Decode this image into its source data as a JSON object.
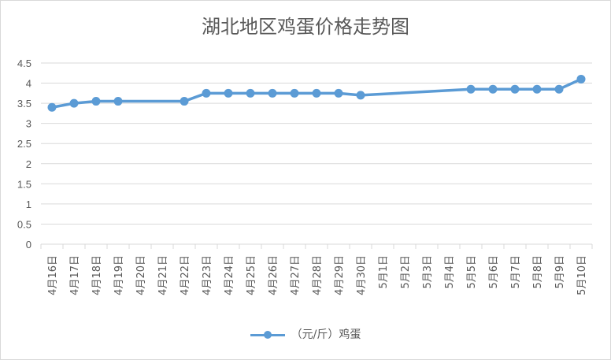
{
  "chart_data": {
    "type": "line",
    "title": "湖北地区鸡蛋价格走势图",
    "xlabel": "",
    "ylabel": "",
    "ylim": [
      0,
      4.5
    ],
    "yticks": [
      "0",
      "0.5",
      "1",
      "1.5",
      "2",
      "2.5",
      "3",
      "3.5",
      "4",
      "4.5"
    ],
    "grid": true,
    "legend_position": "bottom",
    "categories": [
      "4月16日",
      "4月17日",
      "4月18日",
      "4月19日",
      "4月20日",
      "4月21日",
      "4月22日",
      "4月23日",
      "4月24日",
      "4月25日",
      "4月26日",
      "4月27日",
      "4月28日",
      "4月29日",
      "4月30日",
      "5月1日",
      "5月2日",
      "5月3日",
      "5月4日",
      "5月5日",
      "5月6日",
      "5月7日",
      "5月8日",
      "5月9日",
      "5月10日"
    ],
    "series": [
      {
        "name": "（元/斤）鸡蛋",
        "color": "#5b9bd5",
        "values": [
          3.4,
          3.5,
          3.55,
          3.55,
          null,
          null,
          3.55,
          3.75,
          3.75,
          3.75,
          3.75,
          3.75,
          3.75,
          3.75,
          3.7,
          null,
          null,
          null,
          null,
          3.85,
          3.85,
          3.85,
          3.85,
          3.85,
          4.1
        ]
      }
    ]
  }
}
